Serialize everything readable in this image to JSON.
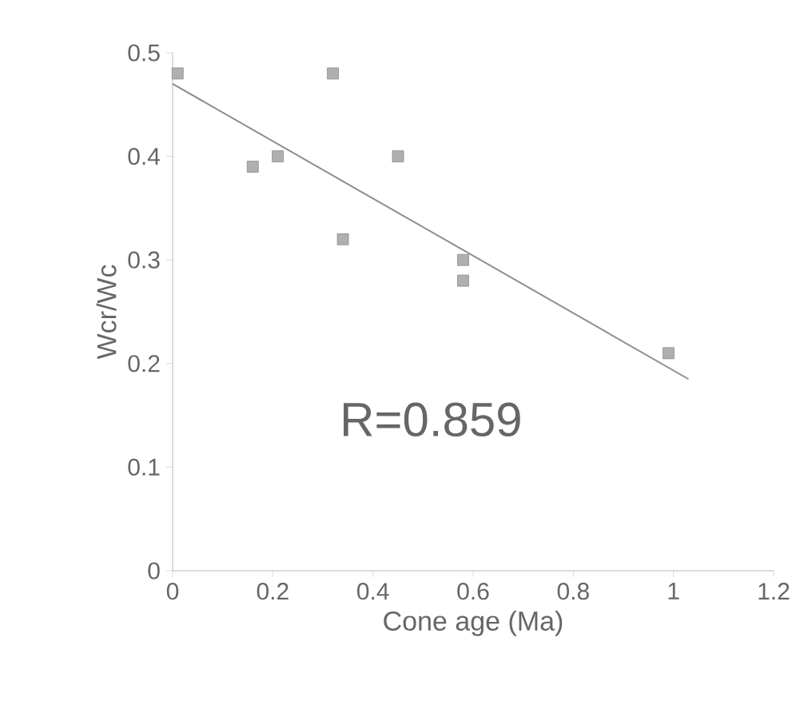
{
  "chart_data": {
    "type": "scatter",
    "xlabel": "Cone age (Ma)",
    "ylabel": "Wcr/Wc",
    "xlim": [
      0,
      1.2
    ],
    "ylim": [
      0,
      0.5
    ],
    "xticks": [
      0,
      0.2,
      0.4,
      0.6,
      0.8,
      1,
      1.2
    ],
    "yticks": [
      0,
      0.1,
      0.2,
      0.3,
      0.4,
      0.5
    ],
    "grid": false,
    "annotations": [
      "R=0.859"
    ],
    "series": [
      {
        "marker": "square",
        "color": "#8c8c8c",
        "x": [
          0.01,
          0.16,
          0.21,
          0.32,
          0.34,
          0.45,
          0.58,
          0.58,
          0.99
        ],
        "values": [
          0.48,
          0.39,
          0.4,
          0.48,
          0.32,
          0.4,
          0.3,
          0.28,
          0.21
        ]
      },
      {
        "type": "line",
        "marker": "none",
        "color": "#8c8c8c",
        "line_style": "solid",
        "x": [
          0,
          1.03
        ],
        "values": [
          0.47,
          0.185
        ]
      }
    ]
  }
}
